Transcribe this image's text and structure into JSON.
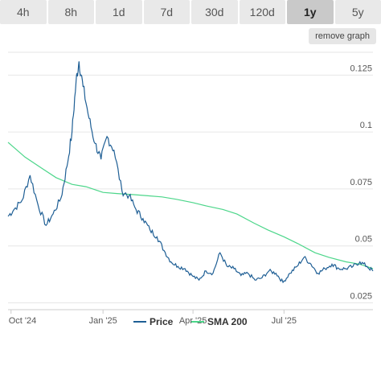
{
  "tabs": [
    {
      "label": "4h",
      "active": false
    },
    {
      "label": "8h",
      "active": false
    },
    {
      "label": "1d",
      "active": false
    },
    {
      "label": "7d",
      "active": false
    },
    {
      "label": "30d",
      "active": false
    },
    {
      "label": "120d",
      "active": false
    },
    {
      "label": "1y",
      "active": true
    },
    {
      "label": "5y",
      "active": false
    }
  ],
  "remove_graph_label": "remove graph",
  "colors": {
    "price": "#1f5f95",
    "sma": "#4cd68a",
    "grid": "#e6e6e6"
  },
  "chart_data": {
    "type": "line",
    "x_ticks": [
      "Oct '24",
      "Jan '25",
      "Apr '25",
      "Jul '25"
    ],
    "y_ticks": [
      "0.025",
      "0.05",
      "0.075",
      "0.1",
      "0.125"
    ],
    "ylim": [
      0.022,
      0.135
    ],
    "xlim": [
      "2024-09-28",
      "2025-09-28"
    ],
    "series": [
      {
        "name": "Price",
        "x": [
          "2024-09-28",
          "2024-10-04",
          "2024-10-12",
          "2024-10-20",
          "2024-10-28",
          "2024-11-05",
          "2024-11-12",
          "2024-11-20",
          "2024-11-26",
          "2024-12-01",
          "2024-12-05",
          "2024-12-08",
          "2024-12-12",
          "2024-12-18",
          "2024-12-24",
          "2024-12-30",
          "2025-01-05",
          "2025-01-12",
          "2025-01-20",
          "2025-01-27",
          "2025-02-03",
          "2025-02-10",
          "2025-02-17",
          "2025-02-24",
          "2025-03-03",
          "2025-03-10",
          "2025-03-17",
          "2025-03-24",
          "2025-03-31",
          "2025-04-07",
          "2025-04-14",
          "2025-04-21",
          "2025-04-28",
          "2025-05-05",
          "2025-05-12",
          "2025-05-19",
          "2025-05-26",
          "2025-06-02",
          "2025-06-09",
          "2025-06-16",
          "2025-06-23",
          "2025-06-30",
          "2025-07-07",
          "2025-07-14",
          "2025-07-21",
          "2025-07-28",
          "2025-08-04",
          "2025-08-11",
          "2025-08-18",
          "2025-08-25",
          "2025-09-01",
          "2025-09-08",
          "2025-09-15",
          "2025-09-22",
          "2025-09-28"
        ],
        "values": [
          0.063,
          0.066,
          0.07,
          0.081,
          0.068,
          0.059,
          0.064,
          0.071,
          0.085,
          0.1,
          0.122,
          0.131,
          0.12,
          0.106,
          0.095,
          0.088,
          0.098,
          0.092,
          0.074,
          0.072,
          0.066,
          0.062,
          0.057,
          0.054,
          0.048,
          0.043,
          0.041,
          0.04,
          0.037,
          0.035,
          0.039,
          0.038,
          0.047,
          0.041,
          0.04,
          0.037,
          0.038,
          0.035,
          0.036,
          0.039,
          0.038,
          0.034,
          0.038,
          0.041,
          0.045,
          0.042,
          0.038,
          0.04,
          0.042,
          0.04,
          0.04,
          0.041,
          0.043,
          0.041,
          0.039
        ]
      },
      {
        "name": "SMA 200",
        "x": [
          "2024-09-28",
          "2024-10-15",
          "2024-11-01",
          "2024-11-15",
          "2024-12-01",
          "2024-12-15",
          "2025-01-01",
          "2025-01-15",
          "2025-02-01",
          "2025-02-15",
          "2025-03-01",
          "2025-03-15",
          "2025-04-01",
          "2025-04-15",
          "2025-05-01",
          "2025-05-15",
          "2025-06-01",
          "2025-06-15",
          "2025-07-01",
          "2025-07-15",
          "2025-08-01",
          "2025-08-15",
          "2025-09-01",
          "2025-09-15",
          "2025-09-28"
        ],
        "values": [
          0.0955,
          0.089,
          0.084,
          0.08,
          0.077,
          0.076,
          0.0735,
          0.073,
          0.0725,
          0.072,
          0.0715,
          0.0705,
          0.069,
          0.0675,
          0.066,
          0.064,
          0.06,
          0.057,
          0.054,
          0.051,
          0.047,
          0.045,
          0.043,
          0.042,
          0.04
        ]
      }
    ]
  }
}
